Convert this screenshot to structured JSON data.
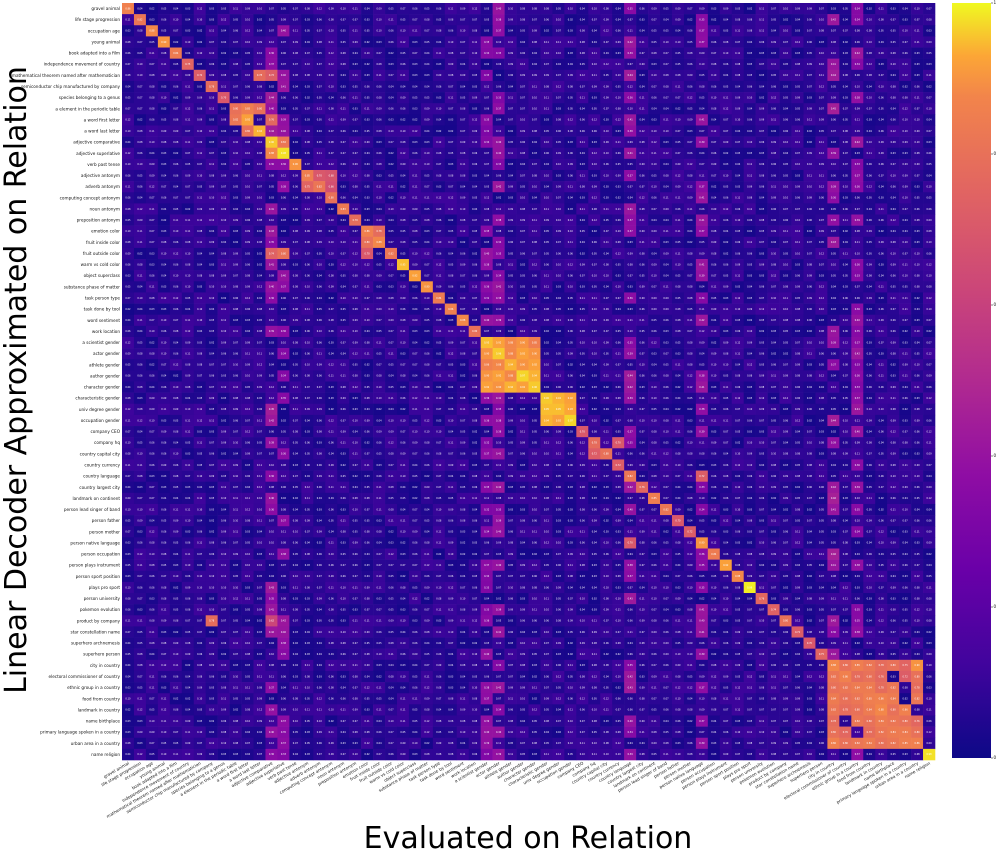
{
  "chart_data": {
    "type": "heatmap",
    "title": "",
    "xlabel": "Evaluated on Relation",
    "ylabel": "Linear Decoder Approximated on Relation",
    "colormap": "plasma",
    "colorbar": {
      "min": 0.0,
      "max": 1.0,
      "ticks": [
        0.0,
        0.2,
        0.4,
        0.6,
        0.8,
        1.0
      ]
    },
    "relations": [
      "gravel animal",
      "life stage progression",
      "occupation age",
      "young animal",
      "book adapted into a film",
      "independence movement of country",
      "mathematical theorem named after mathematician",
      "semiconductor chip manufactured by company",
      "species belonging to a genus",
      "a element in the periodic table",
      "a word first letter",
      "a word last letter",
      "adjective comparative",
      "adjective superlative",
      "verb past tense",
      "adjective antonym",
      "adverb antonym",
      "computing concept antonym",
      "noun antonym",
      "preposition antonym",
      "emotion color",
      "fruit inside color",
      "fruit outside color",
      "warm vs cold color",
      "object superclass",
      "substance phase of matter",
      "task person type",
      "task done by tool",
      "word sentiment",
      "work location",
      "a scientist gender",
      "actor gender",
      "athlete gender",
      "author gender",
      "character gender",
      "characteristic gender",
      "univ degree gender",
      "occupation gender",
      "company CEO",
      "company hq",
      "country capital city",
      "country currency",
      "country language",
      "country largest city",
      "landmark on continent",
      "person lead singer of band",
      "person father",
      "person mother",
      "person native language",
      "person occupation",
      "person plays instrument",
      "person sport position",
      "plays pro sport",
      "person university",
      "pokemon evolution",
      "product by company",
      "star constellation name",
      "superhero archnemesis",
      "superhero person",
      "city in country",
      "electoral commissioner of country",
      "ethnic group in a country",
      "food from country",
      "landmark in country",
      "name birthplace",
      "primary language spoken in a country",
      "urban area in a country",
      "name religion"
    ],
    "diagonal": [
      0.86,
      0.82,
      0.88,
      0.9,
      0.84,
      0.75,
      0.72,
      0.78,
      0.7,
      0.8,
      0.92,
      0.94,
      0.96,
      0.98,
      0.9,
      0.85,
      0.82,
      0.8,
      0.83,
      0.78,
      0.86,
      0.88,
      0.82,
      0.95,
      0.92,
      0.9,
      0.84,
      0.86,
      0.88,
      0.8,
      0.95,
      0.96,
      0.94,
      0.97,
      0.96,
      0.96,
      0.95,
      0.97,
      0.7,
      0.78,
      0.8,
      0.72,
      0.82,
      0.76,
      0.85,
      0.82,
      0.7,
      0.72,
      0.9,
      0.84,
      0.92,
      0.88,
      0.99,
      0.76,
      0.74,
      0.8,
      0.72,
      0.7,
      0.75,
      0.88,
      0.86,
      0.84,
      0.85,
      0.88,
      0.82,
      0.84,
      0.86,
      0.98
    ],
    "highlights": [
      [
        6,
        11,
        0.78
      ],
      [
        6,
        12,
        0.72
      ],
      [
        9,
        10,
        0.85
      ],
      [
        9,
        11,
        0.8
      ],
      [
        10,
        9,
        0.82
      ],
      [
        10,
        12,
        0.76
      ],
      [
        11,
        10,
        0.8
      ],
      [
        12,
        13,
        0.82
      ],
      [
        13,
        12,
        0.88
      ],
      [
        22,
        13,
        0.8
      ],
      [
        22,
        12,
        0.74
      ],
      [
        16,
        15,
        0.75
      ],
      [
        15,
        16,
        0.7
      ],
      [
        15,
        17,
        0.68
      ],
      [
        16,
        17,
        0.66
      ],
      [
        20,
        21,
        0.78
      ],
      [
        21,
        20,
        0.8
      ],
      [
        22,
        20,
        0.7
      ],
      [
        30,
        31,
        0.92
      ],
      [
        30,
        32,
        0.88
      ],
      [
        30,
        33,
        0.9
      ],
      [
        30,
        34,
        0.85
      ],
      [
        31,
        30,
        0.9
      ],
      [
        31,
        32,
        0.88
      ],
      [
        31,
        33,
        0.92
      ],
      [
        31,
        34,
        0.9
      ],
      [
        32,
        30,
        0.86
      ],
      [
        32,
        31,
        0.88
      ],
      [
        32,
        33,
        0.9
      ],
      [
        32,
        34,
        0.92
      ],
      [
        33,
        30,
        0.9
      ],
      [
        33,
        31,
        0.92
      ],
      [
        33,
        32,
        0.88
      ],
      [
        33,
        34,
        0.94
      ],
      [
        34,
        30,
        0.92
      ],
      [
        34,
        31,
        0.9
      ],
      [
        34,
        32,
        0.94
      ],
      [
        34,
        33,
        0.92
      ],
      [
        35,
        36,
        0.94
      ],
      [
        35,
        37,
        0.92
      ],
      [
        36,
        35,
        0.95
      ],
      [
        36,
        37,
        0.93
      ],
      [
        37,
        35,
        0.94
      ],
      [
        37,
        36,
        0.92
      ],
      [
        39,
        41,
        0.7
      ],
      [
        40,
        39,
        0.72
      ],
      [
        42,
        48,
        0.72
      ],
      [
        48,
        42,
        0.7
      ],
      [
        55,
        7,
        0.78
      ],
      [
        55,
        12,
        0.62
      ],
      [
        59,
        60,
        0.8
      ],
      [
        59,
        61,
        0.85
      ],
      [
        59,
        62,
        0.82
      ],
      [
        59,
        63,
        0.78
      ],
      [
        59,
        64,
        0.8
      ],
      [
        59,
        65,
        0.75
      ],
      [
        59,
        66,
        0.9
      ],
      [
        60,
        59,
        0.82
      ],
      [
        60,
        61,
        0.78
      ],
      [
        60,
        62,
        0.8
      ],
      [
        60,
        63,
        0.76
      ],
      [
        60,
        65,
        0.72
      ],
      [
        60,
        66,
        0.8
      ],
      [
        61,
        59,
        0.8
      ],
      [
        61,
        60,
        0.82
      ],
      [
        61,
        62,
        0.84
      ],
      [
        61,
        63,
        0.78
      ],
      [
        61,
        64,
        0.82
      ],
      [
        61,
        66,
        0.78
      ],
      [
        62,
        59,
        0.84
      ],
      [
        62,
        60,
        0.8
      ],
      [
        62,
        61,
        0.82
      ],
      [
        62,
        63,
        0.86
      ],
      [
        62,
        64,
        0.84
      ],
      [
        62,
        66,
        0.82
      ],
      [
        63,
        59,
        0.82
      ],
      [
        63,
        60,
        0.78
      ],
      [
        63,
        61,
        0.8
      ],
      [
        63,
        62,
        0.84
      ],
      [
        63,
        64,
        0.8
      ],
      [
        63,
        65,
        0.86
      ],
      [
        64,
        59,
        0.78
      ],
      [
        64,
        61,
        0.82
      ],
      [
        64,
        62,
        0.8
      ],
      [
        64,
        63,
        0.84
      ],
      [
        64,
        65,
        0.8
      ],
      [
        64,
        66,
        0.76
      ],
      [
        65,
        59,
        0.8
      ],
      [
        65,
        60,
        0.76
      ],
      [
        65,
        62,
        0.78
      ],
      [
        65,
        63,
        0.82
      ],
      [
        65,
        64,
        0.84
      ],
      [
        65,
        66,
        0.8
      ],
      [
        66,
        59,
        0.86
      ],
      [
        66,
        60,
        0.8
      ],
      [
        66,
        61,
        0.82
      ],
      [
        66,
        62,
        0.84
      ],
      [
        66,
        63,
        0.8
      ],
      [
        66,
        64,
        0.82
      ],
      [
        66,
        65,
        0.85
      ]
    ],
    "moderate_columns": [
      [
        12,
        0.45
      ],
      [
        13,
        0.42
      ],
      [
        30,
        0.4
      ],
      [
        31,
        0.42
      ],
      [
        42,
        0.44
      ],
      [
        48,
        0.42
      ],
      [
        59,
        0.46
      ],
      [
        61,
        0.42
      ]
    ]
  }
}
